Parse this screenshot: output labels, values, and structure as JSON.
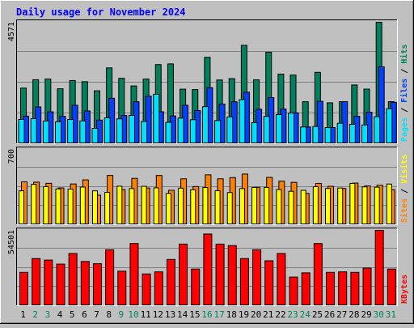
{
  "chart_data": {
    "type": "bar",
    "title": "Daily usage for November 2024",
    "categories": [
      "1",
      "2",
      "3",
      "4",
      "5",
      "6",
      "7",
      "8",
      "9",
      "10",
      "11",
      "12",
      "13",
      "14",
      "15",
      "16",
      "17",
      "18",
      "19",
      "20",
      "21",
      "22",
      "23",
      "24",
      "25",
      "26",
      "27",
      "28",
      "29",
      "30",
      "31"
    ],
    "weekend_days": [
      "2",
      "3",
      "9",
      "10",
      "16",
      "17",
      "23",
      "24",
      "30",
      "31"
    ],
    "colors": {
      "hits": "#00805c",
      "files": "#0040ff",
      "pages": "#00e0ff",
      "visits": "#ff8000",
      "sites": "#ffff00",
      "kbytes": "#ff0000",
      "title": "#0000ff",
      "weekday_label": "#000000",
      "weekend_label": "#00805c",
      "background": "#c0c0c0",
      "plot_background": "#c0c0c0",
      "grid": "#808080",
      "bar_outline": "#000000"
    },
    "panels": [
      {
        "id": "hits-files-pages",
        "ymax_label": "4571",
        "ymax": 4571,
        "legend": [
          {
            "text": "Pages",
            "color": "#00e0ff"
          },
          {
            "text": " / ",
            "color": "#000000"
          },
          {
            "text": "Files",
            "color": "#0040ff"
          },
          {
            "text": " / ",
            "color": "#000000"
          },
          {
            "text": "Hits",
            "color": "#00805c"
          }
        ],
        "series": [
          {
            "name": "Hits",
            "values": [
              2094,
              2410,
              2438,
              2070,
              2379,
              2334,
              1993,
              2854,
              2462,
              2176,
              2437,
              2979,
              3005,
              2054,
              2041,
              3253,
              2399,
              2451,
              3704,
              2405,
              3442,
              2621,
              2585,
              1582,
              2688,
              1539,
              1585,
              2212,
              2056,
              4571,
              1585
            ]
          },
          {
            "name": "Files",
            "values": [
              1040,
              1387,
              1202,
              1033,
              1448,
              1235,
              890,
              1712,
              1064,
              1580,
              1792,
              1205,
              1047,
              1448,
              1250,
              2110,
              1494,
              1578,
              1940,
              1300,
              1737,
              1305,
              1163,
              631,
              1597,
              609,
              1585,
              1035,
              1187,
              2897,
              1557
            ]
          },
          {
            "name": "Pages",
            "values": [
              917,
              945,
              854,
              824,
              913,
              859,
              579,
              978,
              937,
              1066,
              840,
              1862,
              807,
              965,
              904,
              1396,
              874,
              1008,
              1661,
              795,
              1029,
              1098,
              1154,
              631,
              650,
              609,
              770,
              732,
              707,
              1018,
              1316
            ]
          }
        ]
      },
      {
        "id": "visits-sites",
        "ymax_label": "700",
        "ymax": 700,
        "legend": [
          {
            "text": "Sites",
            "color": "#ff8000"
          },
          {
            "text": " / ",
            "color": "#000000"
          },
          {
            "text": "Visits",
            "color": "#ffff00"
          }
        ],
        "series": [
          {
            "name": "Visits",
            "values": [
              315,
              375,
              354,
              333,
              331,
              350,
              315,
              301,
              358,
              336,
              357,
              343,
              291,
              340,
              325,
              346,
              316,
              299,
              336,
              347,
              347,
              327,
              311,
              320,
              354,
              337,
              341,
              384,
              352,
              349,
              378
            ]
          },
          {
            "name": "Sites",
            "values": [
              399,
              396,
              385,
              342,
              379,
              417,
              275,
              458,
              327,
              431,
              341,
              458,
              320,
              427,
              355,
              464,
              427,
              438,
              471,
              348,
              440,
              405,
              394,
              291,
              384,
              357,
              337,
              387,
              361,
              367,
              326
            ]
          }
        ]
      },
      {
        "id": "kbytes",
        "ymax_label": "54501",
        "ymax": 54501,
        "legend": [
          {
            "text": "KBytes",
            "color": "#ff0000"
          }
        ],
        "series": [
          {
            "name": "KBytes",
            "values": [
              24138,
              34125,
              33052,
              30119,
              37800,
              32003,
              30400,
              40500,
              24988,
              45000,
              23000,
              24500,
              33500,
              44602,
              26534,
              51903,
              44602,
              43508,
              34125,
              40500,
              32545,
              37800,
              20742,
              23800,
              45000,
              24138,
              24500,
              24138,
              27272,
              54501,
              26534
            ]
          }
        ]
      }
    ],
    "xlabel": "",
    "ylabel": ""
  }
}
